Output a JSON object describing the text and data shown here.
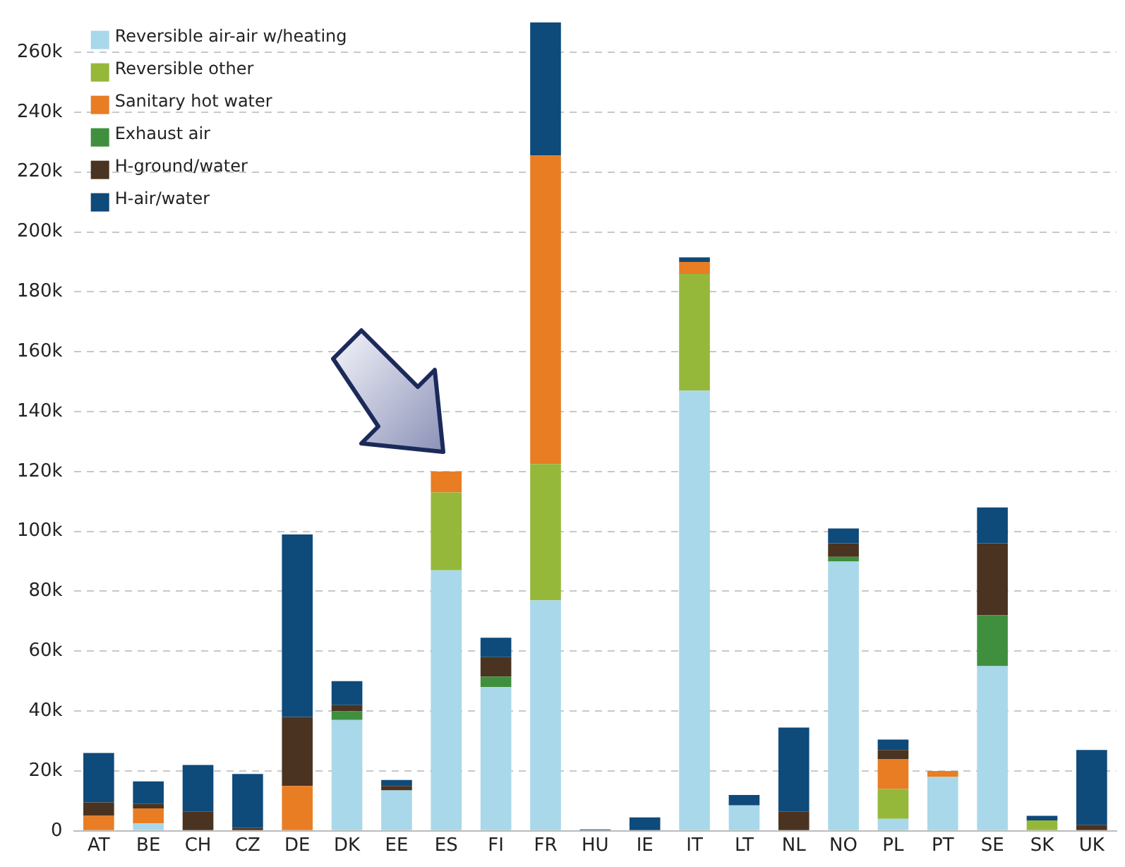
{
  "chart_data": {
    "type": "bar",
    "stacked": true,
    "categories": [
      "AT",
      "BE",
      "CH",
      "CZ",
      "DE",
      "DK",
      "EE",
      "ES",
      "FI",
      "FR",
      "HU",
      "IE",
      "IT",
      "LT",
      "NL",
      "NO",
      "PL",
      "PT",
      "SE",
      "SK",
      "UK"
    ],
    "series": [
      {
        "name": "Reversible air-air w/heating",
        "color": "#a8d8ea",
        "values": [
          0,
          2500,
          0,
          0,
          0,
          37000,
          13500,
          87000,
          48000,
          77000,
          0,
          0,
          147000,
          8500,
          0,
          90000,
          4000,
          18000,
          55000,
          0,
          0
        ]
      },
      {
        "name": "Reversible other",
        "color": "#95b83a",
        "values": [
          0,
          0,
          0,
          0,
          0,
          0,
          0,
          26000,
          0,
          45500,
          0,
          0,
          39000,
          0,
          0,
          0,
          10000,
          0,
          0,
          3500,
          0
        ]
      },
      {
        "name": "Sanitary hot water",
        "color": "#e87d24",
        "values": [
          5000,
          5000,
          0,
          0,
          15000,
          0,
          0,
          7000,
          0,
          103000,
          0,
          0,
          4000,
          0,
          0,
          0,
          10000,
          2000,
          0,
          0,
          0
        ]
      },
      {
        "name": "Exhaust air",
        "color": "#3f8f3f",
        "values": [
          0,
          0,
          0,
          0,
          0,
          3000,
          0,
          0,
          3500,
          0,
          0,
          0,
          0,
          0,
          0,
          1500,
          0,
          0,
          17000,
          0,
          0
        ]
      },
      {
        "name": "H-ground/water",
        "color": "#4a3320",
        "values": [
          4500,
          1500,
          6500,
          1000,
          23000,
          2000,
          1500,
          0,
          6500,
          0,
          0,
          0,
          0,
          0,
          6500,
          4500,
          3000,
          0,
          24000,
          0,
          2000
        ]
      },
      {
        "name": "H-air/water",
        "color": "#0e4a7a",
        "values": [
          16500,
          7500,
          15500,
          18000,
          61000,
          8000,
          2000,
          0,
          6500,
          44500,
          500,
          4500,
          1500,
          3500,
          28000,
          5000,
          3500,
          0,
          12000,
          1500,
          25000
        ]
      }
    ],
    "ylim": [
      0,
      270000
    ],
    "yticks": [
      {
        "value": 0,
        "label": "0"
      },
      {
        "value": 20000,
        "label": "20k"
      },
      {
        "value": 40000,
        "label": "40k"
      },
      {
        "value": 60000,
        "label": "60k"
      },
      {
        "value": 80000,
        "label": "80k"
      },
      {
        "value": 100000,
        "label": "100k"
      },
      {
        "value": 120000,
        "label": "120k"
      },
      {
        "value": 140000,
        "label": "140k"
      },
      {
        "value": 160000,
        "label": "160k"
      },
      {
        "value": 180000,
        "label": "180k"
      },
      {
        "value": 200000,
        "label": "200k"
      },
      {
        "value": 220000,
        "label": "220k"
      },
      {
        "value": 240000,
        "label": "240k"
      },
      {
        "value": 260000,
        "label": "260k"
      }
    ],
    "grid": "y",
    "legend": "top left"
  }
}
